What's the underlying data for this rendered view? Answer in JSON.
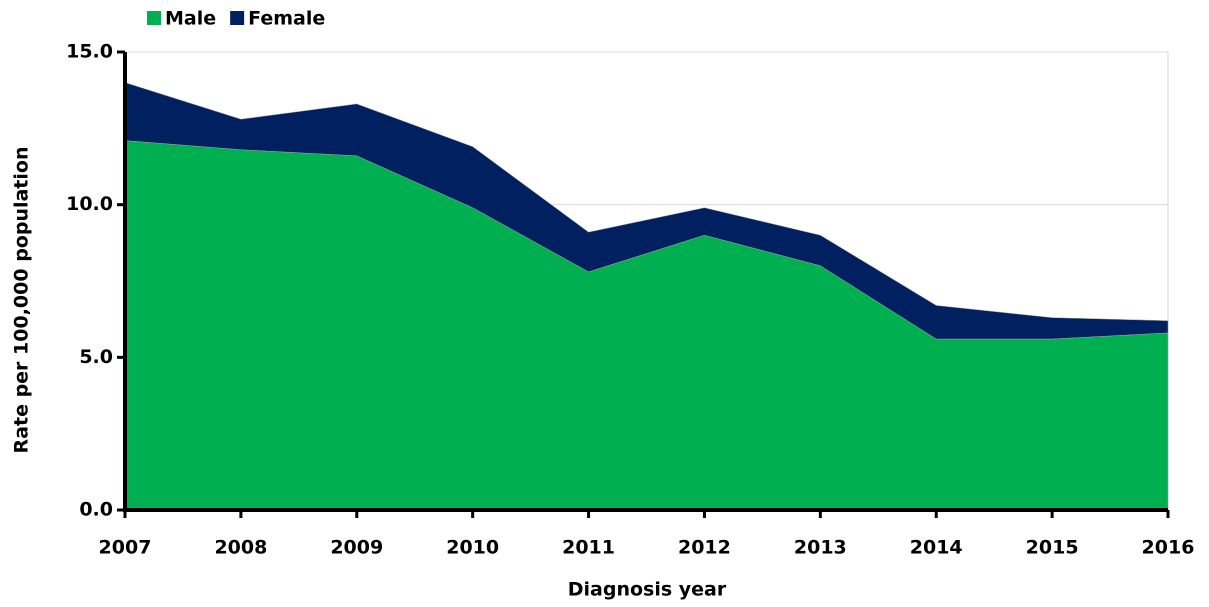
{
  "chart_data": {
    "type": "stacked-area",
    "x_label": "Diagnosis year",
    "y_label": "Rate per 100,000 population",
    "categories": [
      "2007",
      "2008",
      "2009",
      "2010",
      "2011",
      "2012",
      "2013",
      "2014",
      "2015",
      "2016"
    ],
    "series": [
      {
        "name": "Male",
        "color": "#00b050",
        "values": [
          12.1,
          11.8,
          11.6,
          9.9,
          7.8,
          9.0,
          8.0,
          5.6,
          5.6,
          5.8
        ]
      },
      {
        "name": "Female",
        "color": "#002060",
        "values": [
          1.9,
          1.0,
          1.7,
          2.0,
          1.3,
          0.9,
          1.0,
          1.1,
          0.7,
          0.4
        ]
      }
    ],
    "ylim": [
      0,
      15
    ],
    "yticks": [
      {
        "value": 0,
        "label": "0.0"
      },
      {
        "value": 5,
        "label": "5.0"
      },
      {
        "value": 10,
        "label": "10.0"
      },
      {
        "value": 15,
        "label": "15.0"
      }
    ],
    "grid": true,
    "legend": "top-left"
  }
}
